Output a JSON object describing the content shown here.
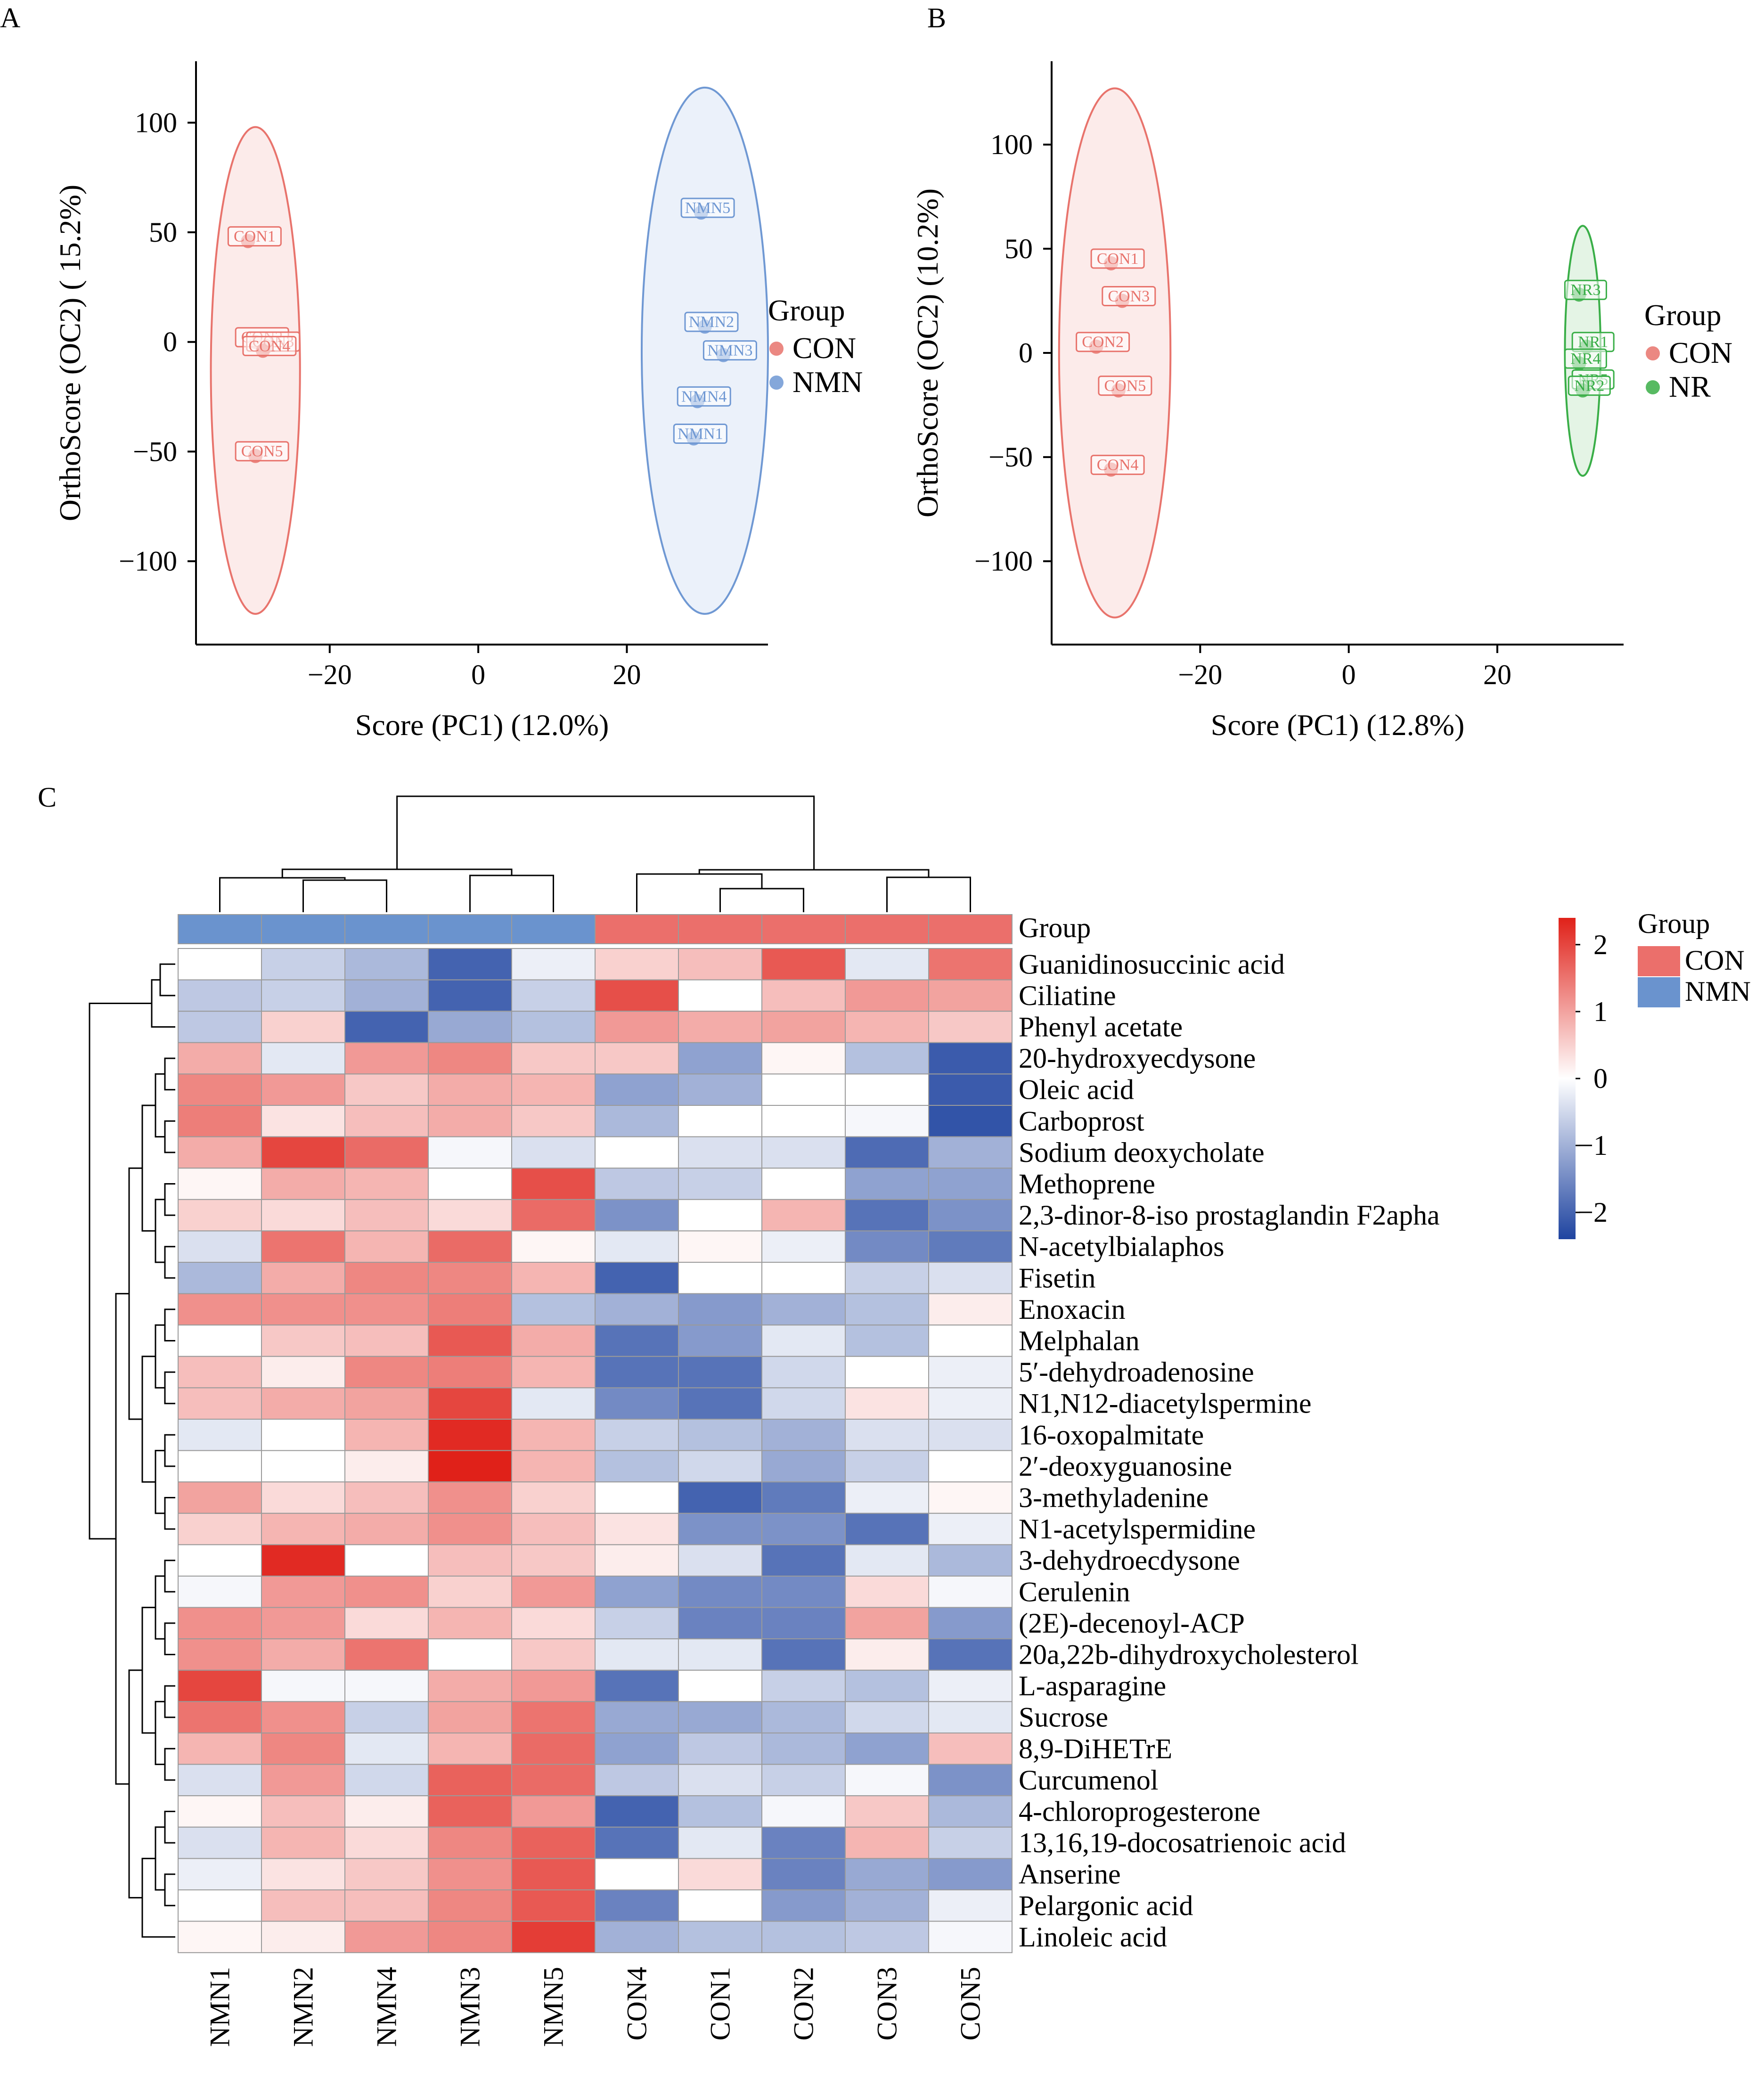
{
  "colors": {
    "con": "#E8736C",
    "con_fill": "#FBE8E6",
    "nmn": "#6F98D3",
    "nmn_fill": "#E7EEF9",
    "nr": "#39AE47",
    "nr_fill": "#DFF2E1",
    "group_con": "#EB6F6B",
    "group_nmn": "#6A93CE",
    "heat_high": "#E02119",
    "heat_mid": "#FFFFFF",
    "heat_low": "#1F44A0",
    "cell_border": "#9A9A9A"
  },
  "chart_data": [
    {
      "id": "A",
      "panel_label": "A",
      "type": "scatter",
      "xlabel": "Score (PC1) (12.0%)",
      "ylabel": "OrthoScore (OC2) ( 15.2%)",
      "xlim": [
        -38,
        39
      ],
      "ylim": [
        -138,
        128
      ],
      "xticks": [
        -20,
        0,
        20
      ],
      "yticks": [
        -100,
        -50,
        0,
        50,
        100
      ],
      "xtick_labels": [
        "−20",
        "0",
        "20"
      ],
      "ytick_labels": [
        "−100",
        "−50",
        "0",
        "50",
        "100"
      ],
      "legend": {
        "title": "Group",
        "position": "right"
      },
      "series": [
        {
          "name": "CON",
          "color_key": "con",
          "points": [
            {
              "label": "CON1",
              "x": -31,
              "y": 46
            },
            {
              "label": "CON2",
              "x": -30,
              "y": 0
            },
            {
              "label": "CON3",
              "x": -28.5,
              "y": -2
            },
            {
              "label": "CON4",
              "x": -29,
              "y": -4
            },
            {
              "label": "CON5",
              "x": -30,
              "y": -52
            }
          ],
          "ellipse": {
            "cx": -30,
            "cy": -13,
            "rx": 6,
            "ry": 111
          }
        },
        {
          "name": "NMN",
          "color_key": "nmn",
          "points": [
            {
              "label": "NMN5",
              "x": 30,
              "y": 59
            },
            {
              "label": "NMN2",
              "x": 30.5,
              "y": 7
            },
            {
              "label": "NMN3",
              "x": 33,
              "y": -6
            },
            {
              "label": "NMN4",
              "x": 29.5,
              "y": -27
            },
            {
              "label": "NMN1",
              "x": 29,
              "y": -44
            }
          ],
          "ellipse": {
            "cx": 30.5,
            "cy": -4,
            "rx": 8.5,
            "ry": 120
          }
        }
      ]
    },
    {
      "id": "B",
      "panel_label": "B",
      "type": "scatter",
      "xlabel": "Score (PC1) (12.8%)",
      "ylabel": "OrthoScore (OC2) (10.2%)",
      "xlim": [
        -40,
        37
      ],
      "ylim": [
        -140,
        140
      ],
      "xticks": [
        -20,
        0,
        20
      ],
      "yticks": [
        -100,
        -50,
        0,
        50,
        100
      ],
      "xtick_labels": [
        "−20",
        "0",
        "20"
      ],
      "ytick_labels": [
        "−100",
        "−50",
        "0",
        "50",
        "100"
      ],
      "legend": {
        "title": "Group",
        "position": "right"
      },
      "series": [
        {
          "name": "CON",
          "color_key": "con",
          "points": [
            {
              "label": "CON1",
              "x": -32,
              "y": 43
            },
            {
              "label": "CON3",
              "x": -30.5,
              "y": 25
            },
            {
              "label": "CON2",
              "x": -34,
              "y": 3
            },
            {
              "label": "CON5",
              "x": -31,
              "y": -18
            },
            {
              "label": "CON4",
              "x": -32,
              "y": -56
            }
          ],
          "ellipse": {
            "cx": -31.5,
            "cy": 0,
            "rx": 7.5,
            "ry": 127
          }
        },
        {
          "name": "NR",
          "color_key": "nr",
          "points": [
            {
              "label": "NR3",
              "x": 31,
              "y": 28
            },
            {
              "label": "NR1",
              "x": 32,
              "y": 3
            },
            {
              "label": "NR4",
              "x": 31,
              "y": -5
            },
            {
              "label": "NR5",
              "x": 32,
              "y": -15
            },
            {
              "label": "NR2",
              "x": 31.5,
              "y": -18
            }
          ],
          "ellipse": {
            "cx": 31.5,
            "cy": 1,
            "rx": 2.4,
            "ry": 60
          }
        }
      ]
    },
    {
      "id": "C",
      "panel_label": "C",
      "type": "heatmap",
      "columns": [
        "NMN1",
        "NMN2",
        "NMN4",
        "NMN3",
        "NMN5",
        "CON4",
        "CON1",
        "CON2",
        "CON3",
        "CON5"
      ],
      "column_groups": [
        "NMN",
        "NMN",
        "NMN",
        "NMN",
        "NMN",
        "CON",
        "CON",
        "CON",
        "CON",
        "CON"
      ],
      "group_row_label": "Group",
      "legend": {
        "title": "Group",
        "entries": [
          "CON",
          "NMN"
        ],
        "position": "right"
      },
      "colorbar": {
        "min": -2.4,
        "max": 2.4,
        "ticks": [
          2,
          1,
          0,
          -1,
          -2
        ],
        "tick_labels": [
          "2",
          "1",
          "0",
          "−1",
          "−2"
        ]
      },
      "rows": [
        "Guanidinosuccinic acid",
        "Ciliatine",
        "Phenyl acetate",
        "20-hydroxyecdysone",
        "Oleic acid",
        "Carboprost",
        "Sodium deoxycholate",
        "Methoprene",
        "2,3-dinor-8-iso prostaglandin F2apha",
        "N-acetylbialaphos",
        "Fisetin",
        "Enoxacin",
        "Melphalan",
        "5′-dehydroadenosine",
        "N1,N12-diacetylspermine",
        "16-oxopalmitate",
        "2′-deoxyguanosine",
        "3-methyladenine",
        "N1-acetylspermidine",
        "3-dehydroecdysone",
        "Cerulenin",
        "(2E)-decenoyl-ACP",
        "20a,22b-dihydroxycholesterol",
        "L-asparagine",
        "Sucrose",
        "8,9-DiHETrE",
        "Curcumenol",
        "4-chloroprogesterone",
        "13,16,19-docosatrienoic acid",
        "Anserine",
        "Pelargonic acid",
        "Linoleic acid"
      ],
      "values": [
        [
          0.0,
          -0.6,
          -0.9,
          -2.0,
          -0.2,
          0.5,
          0.7,
          1.8,
          -0.3,
          1.5
        ],
        [
          -0.7,
          -0.6,
          -1.0,
          -2.0,
          -0.6,
          1.9,
          0.0,
          0.7,
          1.1,
          1.0
        ],
        [
          -0.7,
          0.5,
          -2.0,
          -1.1,
          -0.8,
          1.1,
          0.9,
          1.0,
          0.8,
          0.6
        ],
        [
          0.9,
          -0.3,
          1.1,
          1.3,
          0.6,
          0.6,
          -1.2,
          0.1,
          -0.8,
          -2.1
        ],
        [
          1.3,
          1.1,
          0.6,
          0.9,
          0.8,
          -1.2,
          -1.0,
          0.0,
          0.0,
          -2.1
        ],
        [
          1.4,
          0.3,
          0.7,
          0.9,
          0.6,
          -0.9,
          0.0,
          0.0,
          -0.1,
          -2.2
        ],
        [
          0.9,
          2.0,
          1.6,
          -0.1,
          -0.4,
          0.0,
          -0.4,
          -0.4,
          -1.9,
          -1.0
        ],
        [
          0.1,
          0.9,
          0.8,
          0.0,
          1.9,
          -0.7,
          -0.6,
          0.0,
          -1.2,
          -1.2
        ],
        [
          0.5,
          0.4,
          0.7,
          0.4,
          1.6,
          -1.4,
          0.0,
          0.8,
          -1.8,
          -1.4
        ],
        [
          -0.4,
          1.5,
          0.8,
          1.6,
          0.1,
          -0.3,
          0.1,
          -0.2,
          -1.5,
          -1.7
        ],
        [
          -0.9,
          0.9,
          1.3,
          1.3,
          0.8,
          -2.0,
          0.0,
          0.0,
          -0.6,
          -0.4
        ],
        [
          1.2,
          1.2,
          1.2,
          1.4,
          -0.8,
          -1.0,
          -1.3,
          -1.0,
          -0.8,
          0.2
        ],
        [
          0.0,
          0.6,
          0.7,
          1.8,
          0.9,
          -1.8,
          -1.3,
          -0.3,
          -0.8,
          0.0
        ],
        [
          0.7,
          0.2,
          1.3,
          1.4,
          0.8,
          -1.8,
          -1.8,
          -0.5,
          0.0,
          -0.2
        ],
        [
          0.7,
          0.9,
          1.0,
          2.0,
          -0.3,
          -1.5,
          -1.8,
          -0.5,
          0.3,
          -0.2
        ],
        [
          -0.3,
          0.0,
          0.8,
          2.3,
          0.8,
          -0.6,
          -0.8,
          -1.0,
          -0.4,
          -0.4
        ],
        [
          0.0,
          0.0,
          0.2,
          2.4,
          0.8,
          -0.8,
          -0.5,
          -1.1,
          -0.6,
          0.0
        ],
        [
          1.0,
          0.4,
          0.7,
          1.2,
          0.5,
          0.0,
          -2.0,
          -1.7,
          -0.2,
          0.1
        ],
        [
          0.5,
          0.8,
          0.9,
          1.2,
          0.7,
          0.3,
          -1.4,
          -1.4,
          -1.8,
          -0.2
        ],
        [
          0.0,
          2.3,
          0.0,
          0.7,
          0.6,
          0.2,
          -0.4,
          -1.8,
          -0.3,
          -0.9
        ],
        [
          -0.1,
          1.1,
          1.2,
          0.5,
          1.1,
          -1.2,
          -1.5,
          -1.5,
          0.4,
          -0.1
        ],
        [
          1.2,
          1.1,
          0.4,
          0.8,
          0.4,
          -0.6,
          -1.6,
          -1.6,
          1.0,
          -1.3
        ],
        [
          1.2,
          0.9,
          1.5,
          0.0,
          0.6,
          -0.3,
          -0.3,
          -1.8,
          0.2,
          -1.8
        ],
        [
          2.0,
          -0.1,
          -0.1,
          0.9,
          1.1,
          -1.8,
          0.0,
          -0.6,
          -0.8,
          -0.2
        ],
        [
          1.5,
          1.2,
          -0.6,
          1.0,
          1.5,
          -1.1,
          -1.1,
          -0.9,
          -0.5,
          -0.3
        ],
        [
          0.8,
          1.3,
          -0.3,
          0.8,
          1.6,
          -1.2,
          -0.7,
          -0.9,
          -1.2,
          0.7
        ],
        [
          -0.4,
          1.1,
          -0.5,
          1.7,
          1.6,
          -0.7,
          -0.4,
          -0.6,
          -0.1,
          -1.4
        ],
        [
          0.1,
          0.7,
          0.2,
          1.7,
          1.1,
          -2.0,
          -0.8,
          -0.1,
          0.6,
          -0.9
        ],
        [
          -0.4,
          0.8,
          0.4,
          1.3,
          1.7,
          -1.8,
          -0.3,
          -1.6,
          0.8,
          -0.6
        ],
        [
          -0.2,
          0.3,
          0.6,
          1.2,
          1.8,
          0.0,
          0.4,
          -1.6,
          -1.1,
          -1.3
        ],
        [
          0.0,
          0.7,
          0.7,
          1.3,
          1.8,
          -1.6,
          0.0,
          -1.3,
          -1.0,
          -0.2
        ],
        [
          0.1,
          0.2,
          1.1,
          1.3,
          2.1,
          -1.0,
          -0.8,
          -0.8,
          -0.7,
          -0.1
        ]
      ]
    }
  ]
}
